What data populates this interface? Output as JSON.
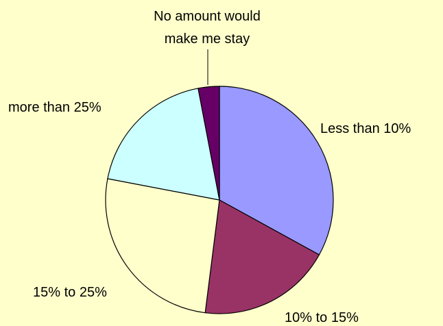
{
  "chart_data": {
    "type": "pie",
    "title": "",
    "slices": [
      {
        "label": "Less than 10%",
        "value": 33,
        "color": "#9999ff"
      },
      {
        "label": "10% to 15%",
        "value": 19,
        "color": "#993366"
      },
      {
        "label": "15% to 25%",
        "value": 26,
        "color": "#ffffcc"
      },
      {
        "label": "more than 25%",
        "value": 19,
        "color": "#ccffff"
      },
      {
        "label": "No amount would make me stay",
        "value": 3,
        "color": "#660066"
      }
    ],
    "label_lines": {
      "no_amount": [
        "No amount would",
        "make me stay"
      ]
    },
    "legend": "none",
    "start_angle_deg": 0,
    "direction": "clockwise"
  }
}
